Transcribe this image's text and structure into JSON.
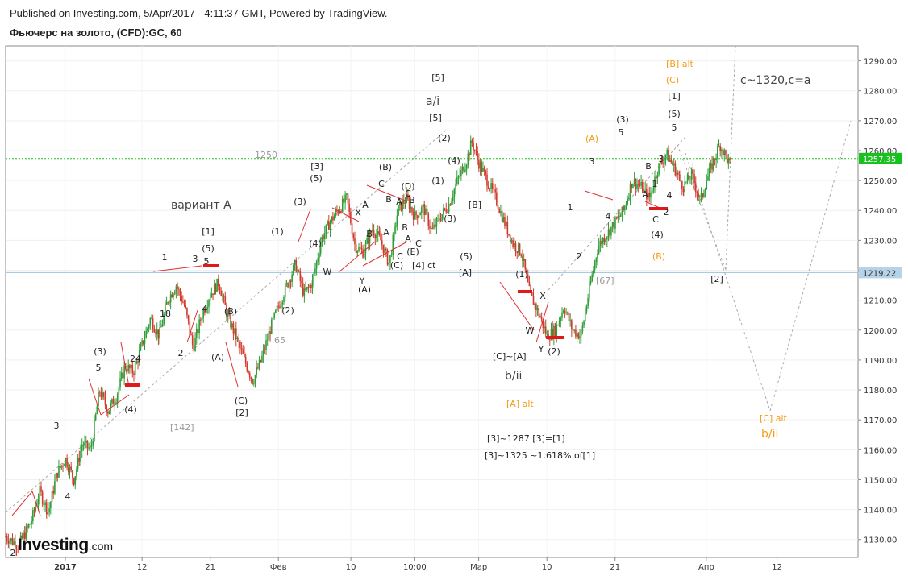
{
  "header": {
    "published": "Published on Investing.com, 5/Apr/2017 - 4:11:37 GMT, Powered by TradingView.",
    "symbol": "Фьючерс на золото, (CFD):GC, 60"
  },
  "logo": {
    "brand": "Investing",
    "tld": ".com"
  },
  "chart_data": {
    "type": "candlestick",
    "y_range": [
      1124,
      1295
    ],
    "y_ticks": [
      1130,
      1140,
      1150,
      1160,
      1170,
      1180,
      1190,
      1200,
      1210,
      1220,
      1230,
      1240,
      1250,
      1260,
      1270,
      1280,
      1290
    ],
    "y_tick_labels": [
      "1130.00",
      "1140.00",
      "1150.00",
      "1160.00",
      "1170.00",
      "1180.00",
      "1190.00",
      "1200.00",
      "1210.00",
      "1220.00",
      "1230.00",
      "1240.00",
      "1250.00",
      "1260.00",
      "1270.00",
      "1280.00",
      "1290.00"
    ],
    "x_ticks": [
      {
        "label": "2017",
        "pos": 0.07,
        "bold": true
      },
      {
        "label": "12",
        "pos": 0.16
      },
      {
        "label": "21",
        "pos": 0.24
      },
      {
        "label": "Фев",
        "pos": 0.32
      },
      {
        "label": "10",
        "pos": 0.405
      },
      {
        "label": "10:00",
        "pos": 0.48
      },
      {
        "label": "Мар",
        "pos": 0.555
      },
      {
        "label": "10",
        "pos": 0.635
      },
      {
        "label": "21",
        "pos": 0.715
      },
      {
        "label": "Апр",
        "pos": 0.822
      },
      {
        "label": "12",
        "pos": 0.905
      }
    ],
    "current_price": {
      "value": 1257.35,
      "label": "1257.35",
      "color": "#18c21e"
    },
    "reference_price": {
      "value": 1219.22,
      "label": "1219.22",
      "color": "#b7d3e8"
    },
    "price_path": [
      [
        0.0,
        1131
      ],
      [
        0.015,
        1128
      ],
      [
        0.03,
        1136
      ],
      [
        0.04,
        1146
      ],
      [
        0.05,
        1139
      ],
      [
        0.06,
        1152
      ],
      [
        0.07,
        1157
      ],
      [
        0.08,
        1150
      ],
      [
        0.09,
        1162
      ],
      [
        0.1,
        1160
      ],
      [
        0.11,
        1180
      ],
      [
        0.12,
        1173
      ],
      [
        0.13,
        1178
      ],
      [
        0.14,
        1188
      ],
      [
        0.15,
        1186
      ],
      [
        0.16,
        1195
      ],
      [
        0.17,
        1204
      ],
      [
        0.18,
        1198
      ],
      [
        0.19,
        1210
      ],
      [
        0.2,
        1215
      ],
      [
        0.21,
        1208
      ],
      [
        0.22,
        1194
      ],
      [
        0.23,
        1205
      ],
      [
        0.24,
        1212
      ],
      [
        0.25,
        1216
      ],
      [
        0.26,
        1205
      ],
      [
        0.27,
        1198
      ],
      [
        0.28,
        1190
      ],
      [
        0.29,
        1183
      ],
      [
        0.3,
        1190
      ],
      [
        0.31,
        1200
      ],
      [
        0.32,
        1208
      ],
      [
        0.33,
        1215
      ],
      [
        0.34,
        1222
      ],
      [
        0.35,
        1212
      ],
      [
        0.36,
        1216
      ],
      [
        0.37,
        1230
      ],
      [
        0.38,
        1236
      ],
      [
        0.39,
        1240
      ],
      [
        0.4,
        1244
      ],
      [
        0.41,
        1228
      ],
      [
        0.42,
        1226
      ],
      [
        0.43,
        1234
      ],
      [
        0.44,
        1230
      ],
      [
        0.45,
        1222
      ],
      [
        0.46,
        1240
      ],
      [
        0.47,
        1244
      ],
      [
        0.48,
        1238
      ],
      [
        0.49,
        1241
      ],
      [
        0.5,
        1233
      ],
      [
        0.51,
        1238
      ],
      [
        0.52,
        1242
      ],
      [
        0.53,
        1250
      ],
      [
        0.54,
        1256
      ],
      [
        0.547,
        1263
      ],
      [
        0.555,
        1256
      ],
      [
        0.565,
        1250
      ],
      [
        0.575,
        1244
      ],
      [
        0.585,
        1236
      ],
      [
        0.595,
        1229
      ],
      [
        0.605,
        1226
      ],
      [
        0.615,
        1212
      ],
      [
        0.625,
        1206
      ],
      [
        0.635,
        1198
      ],
      [
        0.645,
        1200
      ],
      [
        0.655,
        1208
      ],
      [
        0.665,
        1200
      ],
      [
        0.675,
        1198
      ],
      [
        0.685,
        1214
      ],
      [
        0.695,
        1228
      ],
      [
        0.705,
        1232
      ],
      [
        0.715,
        1236
      ],
      [
        0.725,
        1240
      ],
      [
        0.735,
        1250
      ],
      [
        0.745,
        1248
      ],
      [
        0.755,
        1244
      ],
      [
        0.765,
        1254
      ],
      [
        0.775,
        1259
      ],
      [
        0.785,
        1254
      ],
      [
        0.795,
        1248
      ],
      [
        0.805,
        1252
      ],
      [
        0.815,
        1243
      ],
      [
        0.822,
        1250
      ],
      [
        0.83,
        1256
      ],
      [
        0.838,
        1262
      ],
      [
        0.845,
        1258
      ],
      [
        0.85,
        1255
      ]
    ]
  },
  "annotations": {
    "variant_a": "вариант А",
    "a_i": "a/i",
    "b_ii": "b/ii",
    "c_target": "c~1320,c=a",
    "b_alt": "[B] alt",
    "a_alt": "[A] alt",
    "c_alt": "[C] alt",
    "b_ii_alt": "b/ii",
    "calc1": "[3]~1287 [3]=[1]",
    "calc2": "[3]~1325 ~1.618% of[1]",
    "label_1250": "1250",
    "label_65": "65",
    "label_142": "[142]",
    "label_67": "[67]",
    "label_18": "18",
    "label_24": "24",
    "label_4ct": "[4] ct",
    "label_ca": "[C]~[A]"
  },
  "wave_labels": [
    {
      "t": "2",
      "x": 16,
      "y": 690
    },
    {
      "t": "3",
      "x": 70,
      "y": 532
    },
    {
      "t": "4",
      "x": 84,
      "y": 620
    },
    {
      "t": "5",
      "x": 122,
      "y": 460
    },
    {
      "t": "(3)",
      "x": 124,
      "y": 440
    },
    {
      "t": "(4)",
      "x": 162,
      "y": 512
    },
    {
      "t": "1",
      "x": 204,
      "y": 323
    },
    {
      "t": "2",
      "x": 224,
      "y": 442
    },
    {
      "t": "3",
      "x": 242,
      "y": 325
    },
    {
      "t": "4",
      "x": 254,
      "y": 387
    },
    {
      "t": "5",
      "x": 256,
      "y": 328
    },
    {
      "t": "(5)",
      "x": 258,
      "y": 312
    },
    {
      "t": "[1]",
      "x": 258,
      "y": 291
    },
    {
      "t": "(B)",
      "x": 286,
      "y": 390
    },
    {
      "t": "(A)",
      "x": 270,
      "y": 447
    },
    {
      "t": "(C)",
      "x": 299,
      "y": 501
    },
    {
      "t": "[2]",
      "x": 300,
      "y": 516
    },
    {
      "t": "(1)",
      "x": 344,
      "y": 291
    },
    {
      "t": "(2)",
      "x": 357,
      "y": 389
    },
    {
      "t": "(3)",
      "x": 372,
      "y": 254
    },
    {
      "t": "(4)",
      "x": 391,
      "y": 306
    },
    {
      "t": "(5)",
      "x": 392,
      "y": 225
    },
    {
      "t": "[3]",
      "x": 393,
      "y": 210
    },
    {
      "t": "W",
      "x": 406,
      "y": 341
    },
    {
      "t": "X",
      "x": 444,
      "y": 268
    },
    {
      "t": "Y",
      "x": 449,
      "y": 352
    },
    {
      "t": "(A)",
      "x": 452,
      "y": 363
    },
    {
      "t": "A",
      "x": 453,
      "y": 258
    },
    {
      "t": "B",
      "x": 458,
      "y": 294
    },
    {
      "t": "C",
      "x": 473,
      "y": 232
    },
    {
      "t": "(B)",
      "x": 478,
      "y": 211
    },
    {
      "t": "B",
      "x": 482,
      "y": 251
    },
    {
      "t": "A",
      "x": 479,
      "y": 292
    },
    {
      "t": "A",
      "x": 495,
      "y": 254
    },
    {
      "t": "B",
      "x": 502,
      "y": 286
    },
    {
      "t": "A",
      "x": 506,
      "y": 300
    },
    {
      "t": "C",
      "x": 496,
      "y": 322
    },
    {
      "t": "(C)",
      "x": 492,
      "y": 333
    },
    {
      "t": "C",
      "x": 519,
      "y": 306
    },
    {
      "t": "(E)",
      "x": 512,
      "y": 316
    },
    {
      "t": "(D)",
      "x": 506,
      "y": 235
    },
    {
      "t": "C",
      "x": 506,
      "y": 244
    },
    {
      "t": "B",
      "x": 511,
      "y": 252
    },
    {
      "t": "[5]",
      "x": 543,
      "y": 100
    },
    {
      "t": "[5]",
      "x": 540,
      "y": 150
    },
    {
      "t": "(2)",
      "x": 551,
      "y": 175
    },
    {
      "t": "(4)",
      "x": 563,
      "y": 203
    },
    {
      "t": "(1)",
      "x": 543,
      "y": 228
    },
    {
      "t": "(3)",
      "x": 558,
      "y": 275
    },
    {
      "t": "[B]",
      "x": 589,
      "y": 258
    },
    {
      "t": "(5)",
      "x": 578,
      "y": 322
    },
    {
      "t": "[A]",
      "x": 577,
      "y": 342
    },
    {
      "t": "(1)",
      "x": 647,
      "y": 344
    },
    {
      "t": "X",
      "x": 673,
      "y": 371
    },
    {
      "t": "W",
      "x": 657,
      "y": 414
    },
    {
      "t": "Y",
      "x": 671,
      "y": 437
    },
    {
      "t": "(2)",
      "x": 687,
      "y": 440
    },
    {
      "t": "1",
      "x": 707,
      "y": 261
    },
    {
      "t": "2",
      "x": 718,
      "y": 322
    },
    {
      "t": "3",
      "x": 734,
      "y": 204
    },
    {
      "t": "4",
      "x": 754,
      "y": 272
    },
    {
      "t": "(3)",
      "x": 772,
      "y": 152
    },
    {
      "t": "5",
      "x": 770,
      "y": 168
    },
    {
      "t": "B",
      "x": 804,
      "y": 210
    },
    {
      "t": "A",
      "x": 800,
      "y": 245
    },
    {
      "t": "1",
      "x": 812,
      "y": 232
    },
    {
      "t": "C",
      "x": 813,
      "y": 276
    },
    {
      "t": "2",
      "x": 826,
      "y": 267
    },
    {
      "t": "3",
      "x": 820,
      "y": 201
    },
    {
      "t": "4",
      "x": 830,
      "y": 246
    },
    {
      "t": "(4)",
      "x": 815,
      "y": 295
    },
    {
      "t": "5",
      "x": 836,
      "y": 162
    },
    {
      "t": "(5)",
      "x": 836,
      "y": 145
    },
    {
      "t": "[1]",
      "x": 836,
      "y": 123
    },
    {
      "t": "[2]",
      "x": 889,
      "y": 350
    }
  ],
  "orange_labels": [
    {
      "t": "(A)",
      "x": 734,
      "y": 176
    },
    {
      "t": "(B)",
      "x": 817,
      "y": 322
    },
    {
      "t": "(C)",
      "x": 834,
      "y": 103
    },
    {
      "t": "[B] alt",
      "x": 843,
      "y": 83
    }
  ]
}
